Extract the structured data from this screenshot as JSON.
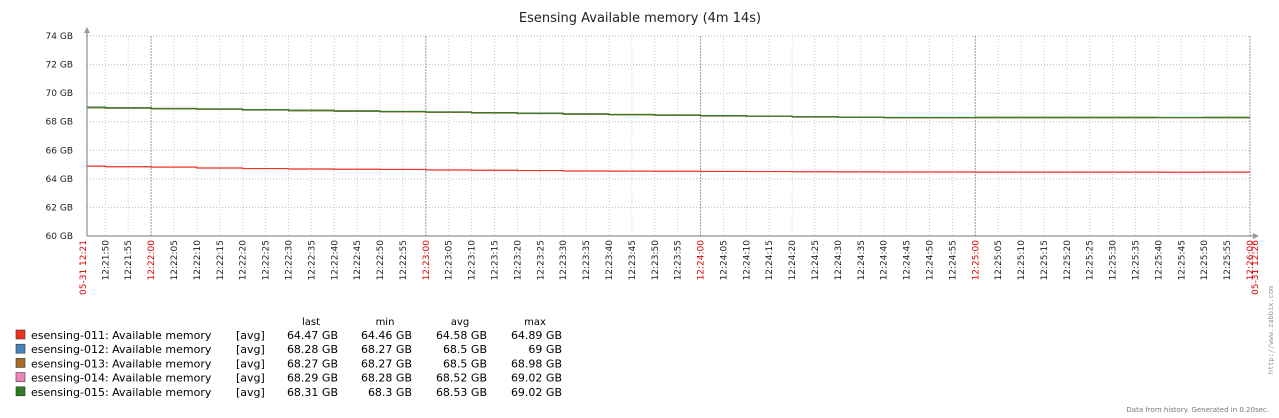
{
  "chart_data": {
    "type": "line",
    "title": "Esensing Available memory (4m 14s)",
    "y_ticks": [
      "60 GB",
      "62 GB",
      "64 GB",
      "66 GB",
      "68 GB",
      "70 GB",
      "72 GB",
      "74 GB"
    ],
    "ylim": [
      60,
      74
    ],
    "y_unit": "GB",
    "grid": true,
    "x_start_label": "05-31 12:21",
    "x_end_label": "05-31 12:26",
    "x_ticks": [
      "12:21:50",
      "12:21:55",
      "12:22:00",
      "12:22:05",
      "12:22:10",
      "12:22:15",
      "12:22:20",
      "12:22:25",
      "12:22:30",
      "12:22:35",
      "12:22:40",
      "12:22:45",
      "12:22:50",
      "12:22:55",
      "12:23:00",
      "12:23:05",
      "12:23:10",
      "12:23:15",
      "12:23:20",
      "12:23:25",
      "12:23:30",
      "12:23:35",
      "12:23:40",
      "12:23:45",
      "12:23:50",
      "12:23:55",
      "12:24:00",
      "12:24:05",
      "12:24:10",
      "12:24:15",
      "12:24:20",
      "12:24:25",
      "12:24:30",
      "12:24:35",
      "12:24:40",
      "12:24:45",
      "12:24:50",
      "12:24:55",
      "12:25:00",
      "12:25:05",
      "12:25:10",
      "12:25:15",
      "12:25:20",
      "12:25:25",
      "12:25:30",
      "12:25:35",
      "12:25:40",
      "12:25:45",
      "12:25:50",
      "12:25:55",
      "12:26:00"
    ],
    "x_ticks_red": [
      "12:22:00",
      "12:23:00",
      "12:24:00",
      "12:25:00",
      "12:26:00"
    ],
    "x": [
      "12:21:46",
      "12:21:50",
      "12:22:00",
      "12:22:10",
      "12:22:20",
      "12:22:30",
      "12:22:40",
      "12:22:50",
      "12:23:00",
      "12:23:10",
      "12:23:20",
      "12:23:30",
      "12:23:40",
      "12:23:50",
      "12:24:00",
      "12:24:10",
      "12:24:20",
      "12:24:30",
      "12:24:40",
      "12:24:50",
      "12:25:00",
      "12:25:10",
      "12:25:20",
      "12:25:30",
      "12:25:40",
      "12:25:50",
      "12:26:00"
    ],
    "series": [
      {
        "name": "esensing-011: Available memory",
        "color": "#ee3322",
        "values": [
          64.89,
          64.85,
          64.82,
          64.76,
          64.72,
          64.69,
          64.67,
          64.66,
          64.62,
          64.6,
          64.58,
          64.55,
          64.54,
          64.53,
          64.52,
          64.51,
          64.5,
          64.49,
          64.48,
          64.48,
          64.47,
          64.47,
          64.47,
          64.47,
          64.46,
          64.47,
          64.47
        ]
      },
      {
        "name": "esensing-012: Available memory",
        "color": "#4a84b8",
        "values": [
          68.98,
          68.95,
          68.9,
          68.86,
          68.82,
          68.77,
          68.73,
          68.69,
          68.65,
          68.61,
          68.57,
          68.52,
          68.48,
          68.44,
          68.4,
          68.37,
          68.33,
          68.3,
          68.28,
          68.28,
          68.28,
          68.28,
          68.28,
          68.28,
          68.28,
          68.28,
          68.28
        ]
      },
      {
        "name": "esensing-013: Available memory",
        "color": "#a86b28",
        "values": [
          68.98,
          68.95,
          68.9,
          68.86,
          68.82,
          68.77,
          68.73,
          68.69,
          68.65,
          68.61,
          68.57,
          68.52,
          68.48,
          68.44,
          68.4,
          68.37,
          68.33,
          68.3,
          68.27,
          68.27,
          68.27,
          68.27,
          68.27,
          68.27,
          68.27,
          68.27,
          68.27
        ]
      },
      {
        "name": "esensing-014: Available memory",
        "color": "#ee88bb",
        "values": [
          69.02,
          68.98,
          68.93,
          68.89,
          68.85,
          68.8,
          68.76,
          68.72,
          68.68,
          68.64,
          68.6,
          68.55,
          68.51,
          68.47,
          68.43,
          68.39,
          68.35,
          68.32,
          68.29,
          68.29,
          68.29,
          68.29,
          68.29,
          68.29,
          68.28,
          68.29,
          68.29
        ]
      },
      {
        "name": "esensing-015: Available memory",
        "color": "#2e7d22",
        "values": [
          69.02,
          68.98,
          68.93,
          68.89,
          68.85,
          68.8,
          68.76,
          68.72,
          68.68,
          68.64,
          68.6,
          68.55,
          68.51,
          68.47,
          68.43,
          68.39,
          68.35,
          68.32,
          68.3,
          68.3,
          68.31,
          68.31,
          68.31,
          68.31,
          68.3,
          68.31,
          68.31
        ]
      }
    ],
    "legend_columns": [
      "last",
      "min",
      "avg",
      "max"
    ],
    "legend_rows": [
      {
        "name": "esensing-011: Available memory",
        "func": "[avg]",
        "last": "64.47 GB",
        "min": "64.46 GB",
        "avg": "64.58 GB",
        "max": "64.89 GB",
        "color": "#ee3322"
      },
      {
        "name": "esensing-012: Available memory",
        "func": "[avg]",
        "last": "68.28 GB",
        "min": "68.27 GB",
        "avg": "68.5 GB",
        "max": "69 GB",
        "color": "#4a84b8"
      },
      {
        "name": "esensing-013: Available memory",
        "func": "[avg]",
        "last": "68.27 GB",
        "min": "68.27 GB",
        "avg": "68.5 GB",
        "max": "68.98 GB",
        "color": "#a86b28"
      },
      {
        "name": "esensing-014: Available memory",
        "func": "[avg]",
        "last": "68.29 GB",
        "min": "68.28 GB",
        "avg": "68.52 GB",
        "max": "69.02 GB",
        "color": "#ee88bb"
      },
      {
        "name": "esensing-015: Available memory",
        "func": "[avg]",
        "last": "68.31 GB",
        "min": "68.3 GB",
        "avg": "68.53 GB",
        "max": "69.02 GB",
        "color": "#2e7d22"
      }
    ]
  },
  "footer": "Data from history. Generated in 0.20sec.",
  "watermark": "http://www.zabbix.com"
}
